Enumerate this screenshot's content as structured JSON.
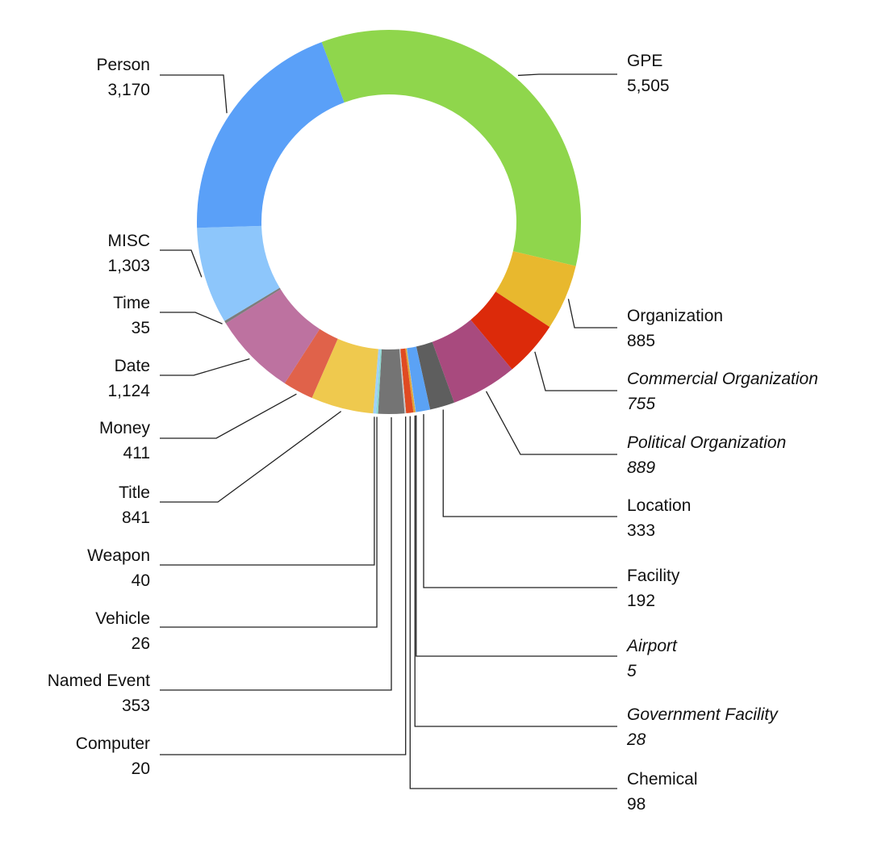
{
  "chart_data": {
    "type": "pie",
    "style": "donut",
    "legend": "none",
    "slices": [
      {
        "label": "GPE",
        "value": 5505,
        "color": "#8fd64c",
        "italic": false
      },
      {
        "label": "Organization",
        "value": 885,
        "color": "#e8b82e",
        "italic": false
      },
      {
        "label": "Commercial Organization",
        "value": 755,
        "color": "#dc2a0a",
        "italic": true
      },
      {
        "label": "Political Organization",
        "value": 889,
        "color": "#a84a7e",
        "italic": true
      },
      {
        "label": "Location",
        "value": 333,
        "color": "#5e5e5e",
        "italic": false
      },
      {
        "label": "Facility",
        "value": 192,
        "color": "#5ba2f5",
        "italic": false
      },
      {
        "label": "Airport",
        "value": 5,
        "color": "#8ec3f7",
        "italic": true
      },
      {
        "label": "Government Facility",
        "value": 28,
        "color": "#e0a43a",
        "italic": true
      },
      {
        "label": "Chemical",
        "value": 98,
        "color": "#e04a22",
        "italic": false
      },
      {
        "label": "Computer",
        "value": 20,
        "color": "#c9c9c9",
        "italic": false
      },
      {
        "label": "Named Event",
        "value": 353,
        "color": "#747474",
        "italic": false
      },
      {
        "label": "Vehicle",
        "value": 26,
        "color": "#8bd8d0",
        "italic": false
      },
      {
        "label": "Weapon",
        "value": 40,
        "color": "#9ed0f9",
        "italic": false
      },
      {
        "label": "Title",
        "value": 841,
        "color": "#efc94e",
        "italic": false
      },
      {
        "label": "Money",
        "value": 411,
        "color": "#e0624a",
        "italic": false
      },
      {
        "label": "Date",
        "value": 1124,
        "color": "#bd72a0",
        "italic": false
      },
      {
        "label": "Time",
        "value": 35,
        "color": "#7d7d7d",
        "italic": false
      },
      {
        "label": "MISC",
        "value": 1303,
        "color": "#8dc6fb",
        "italic": false
      },
      {
        "label": "Person",
        "value": 3170,
        "color": "#5aa0f8",
        "italic": false
      }
    ]
  }
}
